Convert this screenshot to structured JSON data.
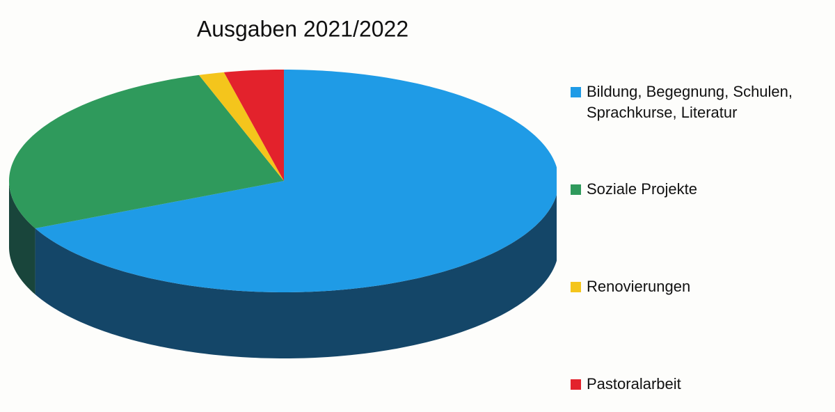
{
  "chart_data": {
    "type": "pie",
    "title": "Ausgaben 2021/2022",
    "categories": [
      "Bildung, Begegnung, Schulen, Sprachkurse, Literatur",
      "Soziale Projekte",
      "Renovierungen",
      "Pastoralarbeit"
    ],
    "values": [
      68,
      27,
      1.5,
      3.5
    ],
    "colors": [
      "#1f9be6",
      "#2f9a5c",
      "#f4c51c",
      "#e3222c"
    ],
    "legend": "right"
  }
}
